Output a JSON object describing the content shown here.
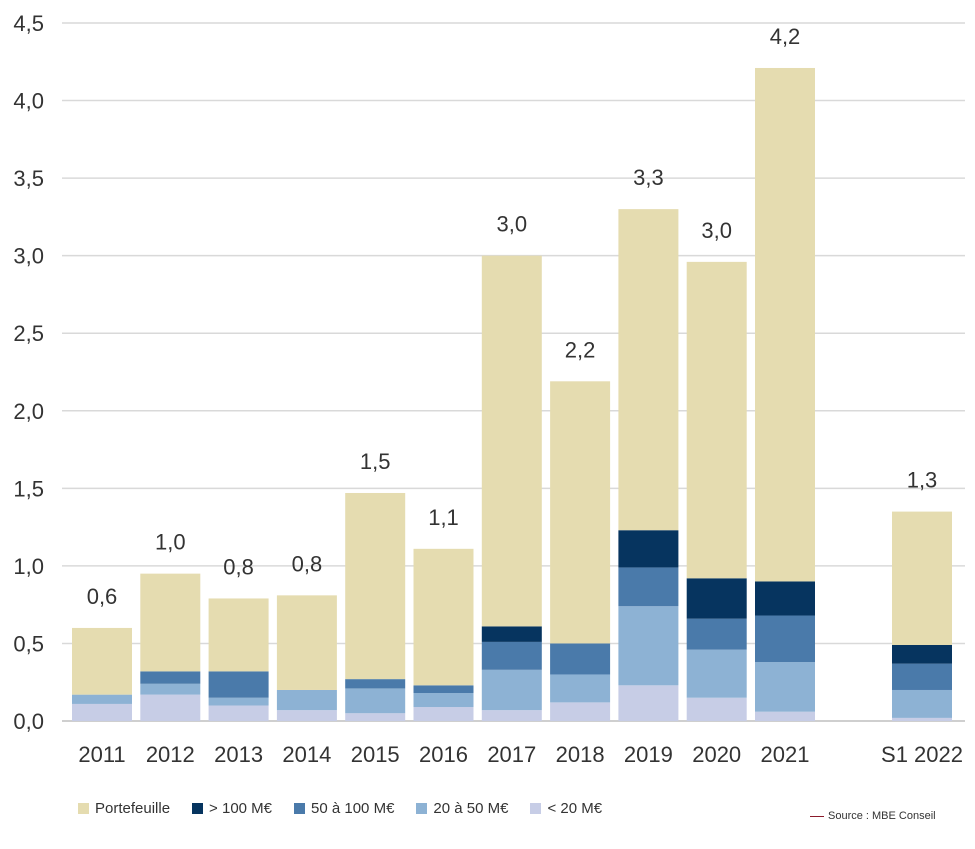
{
  "chart_data": {
    "type": "bar",
    "stacked": true,
    "categories": [
      "2011",
      "2012",
      "2013",
      "2014",
      "2015",
      "2016",
      "2017",
      "2018",
      "2019",
      "2020",
      "2021",
      "S1 2022"
    ],
    "series": [
      {
        "name": "< 20 M€",
        "color": "#c7cde6",
        "values": [
          0.11,
          0.17,
          0.1,
          0.07,
          0.05,
          0.09,
          0.07,
          0.12,
          0.23,
          0.15,
          0.06,
          0.02
        ]
      },
      {
        "name": "20 à 50 M€",
        "color": "#8db2d4",
        "values": [
          0.06,
          0.07,
          0.05,
          0.13,
          0.16,
          0.09,
          0.26,
          0.18,
          0.51,
          0.31,
          0.32,
          0.18
        ]
      },
      {
        "name": "50 à 100 M€",
        "color": "#4a7aaa",
        "values": [
          0.0,
          0.08,
          0.17,
          0.0,
          0.06,
          0.05,
          0.18,
          0.2,
          0.25,
          0.2,
          0.3,
          0.17
        ]
      },
      {
        "name": "> 100 M€",
        "color": "#06345f",
        "values": [
          0.0,
          0.0,
          0.0,
          0.0,
          0.0,
          0.0,
          0.1,
          0.0,
          0.24,
          0.26,
          0.22,
          0.12
        ]
      },
      {
        "name": "Portefeuille",
        "color": "#e5dcb0",
        "values": [
          0.43,
          0.63,
          0.47,
          0.61,
          1.2,
          0.88,
          2.39,
          1.69,
          2.07,
          2.04,
          3.31,
          0.86
        ]
      }
    ],
    "totals_labels": [
      "0,6",
      "1,0",
      "0,8",
      "0,8",
      "1,5",
      "1,1",
      "3,0",
      "2,2",
      "3,3",
      "3,0",
      "4,2",
      "1,3"
    ],
    "y_ticks": [
      "0,0",
      "0,5",
      "1,0",
      "1,5",
      "2,0",
      "2,5",
      "3,0",
      "3,5",
      "4,0",
      "4,5"
    ],
    "ylim": [
      0,
      4.5
    ],
    "grid": true,
    "legend_position": "bottom-left",
    "legend_order": [
      "Portefeuille",
      "> 100 M€",
      "50 à 100 M€",
      "20 à 50 M€",
      "< 20 M€"
    ]
  },
  "source_note": "Source : MBE Conseil"
}
